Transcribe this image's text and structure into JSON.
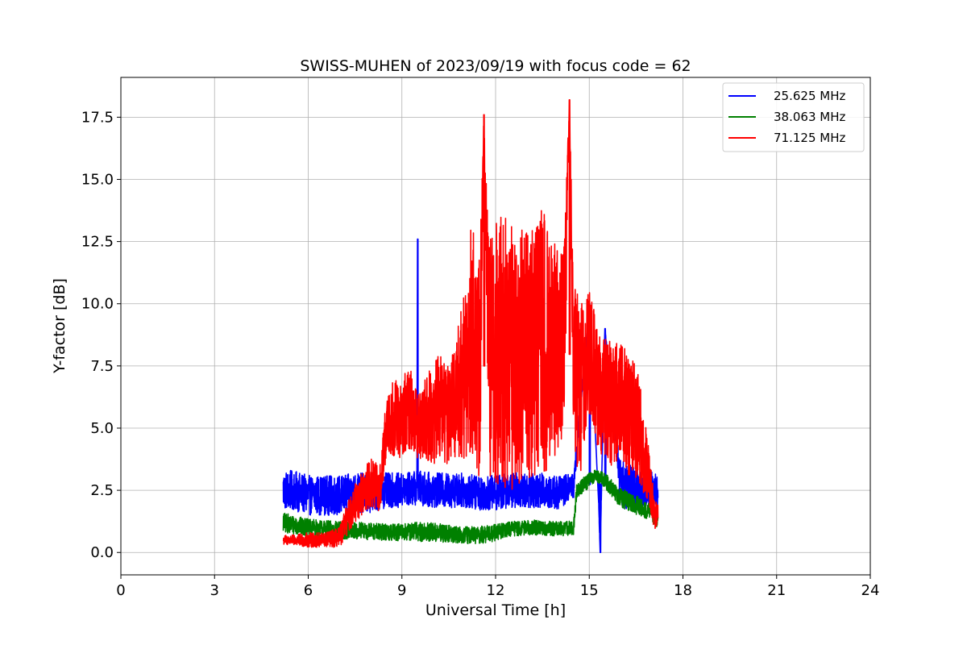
{
  "chart_data": {
    "type": "line",
    "title": "SWISS-MUHEN of 2023/09/19 with focus code = 62",
    "xlabel": "Universal Time [h]",
    "ylabel": "Y-factor [dB]",
    "xlim": [
      0,
      24
    ],
    "ylim": [
      -0.9,
      19.1
    ],
    "xticks": [
      0,
      3,
      6,
      9,
      12,
      15,
      18,
      21,
      24
    ],
    "xtick_labels": [
      "0",
      "3",
      "6",
      "9",
      "12",
      "15",
      "18",
      "21",
      "24"
    ],
    "yticks": [
      0,
      2.5,
      5,
      7.5,
      10,
      12.5,
      15,
      17.5
    ],
    "ytick_labels": [
      "0.0",
      "2.5",
      "5.0",
      "7.5",
      "10.0",
      "12.5",
      "15.0",
      "17.5"
    ],
    "grid": true,
    "legend_position": "top-right",
    "series": [
      {
        "name": "25.625 MHz",
        "color": "#0000ff",
        "x": [
          5.2,
          5.5,
          6.0,
          6.5,
          7.0,
          7.5,
          8.0,
          8.5,
          9.0,
          9.48,
          9.5,
          9.52,
          10.0,
          10.5,
          11.0,
          11.5,
          12.0,
          12.5,
          13.0,
          13.5,
          14.0,
          14.5,
          15.0,
          15.3,
          15.35,
          15.5,
          16.0,
          16.5,
          16.8,
          17.0,
          17.2
        ],
        "y": [
          2.5,
          2.5,
          2.3,
          2.3,
          2.3,
          2.4,
          2.4,
          2.5,
          2.5,
          2.6,
          12.6,
          2.6,
          2.5,
          2.5,
          2.5,
          2.4,
          2.4,
          2.5,
          2.5,
          2.5,
          2.4,
          2.7,
          10.0,
          2.0,
          0.0,
          9.0,
          2.8,
          2.5,
          2.5,
          2.6,
          2.4
        ],
        "band": [
          0.8,
          0.8,
          0.8,
          0.8,
          0.8,
          0.8,
          0.8,
          0.7,
          0.7,
          0.7,
          0.0,
          0.7,
          0.7,
          0.7,
          0.7,
          0.7,
          0.7,
          0.7,
          0.7,
          0.7,
          0.7,
          0.5,
          0.0,
          0.0,
          0.0,
          0.0,
          1.0,
          0.9,
          0.8,
          0.8,
          0.6
        ]
      },
      {
        "name": "38.063 MHz",
        "color": "#008000",
        "x": [
          5.2,
          6.0,
          7.0,
          8.0,
          9.0,
          9.5,
          10.0,
          10.5,
          11.0,
          11.5,
          12.0,
          12.5,
          13.0,
          13.5,
          14.0,
          14.5,
          14.6,
          15.0,
          15.2,
          15.5,
          16.0,
          16.5,
          17.0,
          17.2
        ],
        "y": [
          1.2,
          1.0,
          0.9,
          0.85,
          0.8,
          0.85,
          0.8,
          0.75,
          0.7,
          0.7,
          0.8,
          0.95,
          1.0,
          1.0,
          0.95,
          1.0,
          2.5,
          2.9,
          3.1,
          2.9,
          2.2,
          1.9,
          1.6,
          1.2
        ],
        "band": [
          0.4,
          0.35,
          0.35,
          0.35,
          0.35,
          0.4,
          0.4,
          0.35,
          0.35,
          0.35,
          0.35,
          0.3,
          0.3,
          0.3,
          0.3,
          0.3,
          0.3,
          0.3,
          0.25,
          0.3,
          0.4,
          0.4,
          0.3,
          0.3
        ]
      },
      {
        "name": "71.125 MHz",
        "color": "#ff0000",
        "x": [
          5.2,
          5.5,
          6.0,
          6.5,
          7.0,
          7.2,
          7.5,
          7.8,
          8.0,
          8.3,
          8.5,
          8.7,
          9.0,
          9.2,
          9.5,
          9.8,
          10.0,
          10.2,
          10.5,
          10.8,
          11.0,
          11.2,
          11.5,
          11.62,
          11.8,
          12.0,
          12.3,
          12.6,
          12.9,
          13.2,
          13.5,
          13.8,
          14.0,
          14.2,
          14.36,
          14.5,
          14.7,
          15.0,
          15.3,
          15.6,
          16.0,
          16.3,
          16.6,
          16.9,
          17.1,
          17.2
        ],
        "y": [
          0.5,
          0.5,
          0.5,
          0.5,
          0.6,
          1.2,
          2.0,
          2.5,
          2.8,
          2.5,
          5.0,
          5.5,
          5.2,
          6.0,
          5.0,
          5.5,
          5.5,
          6.0,
          5.5,
          6.5,
          7.0,
          8.5,
          7.5,
          17.6,
          7.5,
          8.0,
          8.0,
          8.0,
          8.0,
          8.5,
          8.5,
          8.0,
          8.0,
          8.5,
          18.2,
          7.5,
          6.5,
          8.0,
          6.5,
          6.0,
          6.0,
          5.5,
          5.0,
          3.0,
          1.5,
          1.5
        ],
        "band": [
          0.2,
          0.2,
          0.3,
          0.3,
          0.4,
          0.6,
          0.8,
          0.9,
          1.0,
          1.0,
          1.2,
          1.6,
          1.5,
          1.8,
          1.3,
          1.8,
          2.0,
          2.2,
          2.0,
          2.6,
          3.5,
          4.5,
          5.0,
          0.0,
          5.2,
          5.5,
          5.5,
          5.5,
          5.0,
          5.5,
          5.5,
          4.5,
          4.5,
          4.0,
          0.0,
          3.5,
          3.5,
          2.5,
          2.5,
          2.5,
          2.5,
          2.5,
          2.2,
          1.2,
          0.6,
          0.5
        ]
      }
    ]
  }
}
